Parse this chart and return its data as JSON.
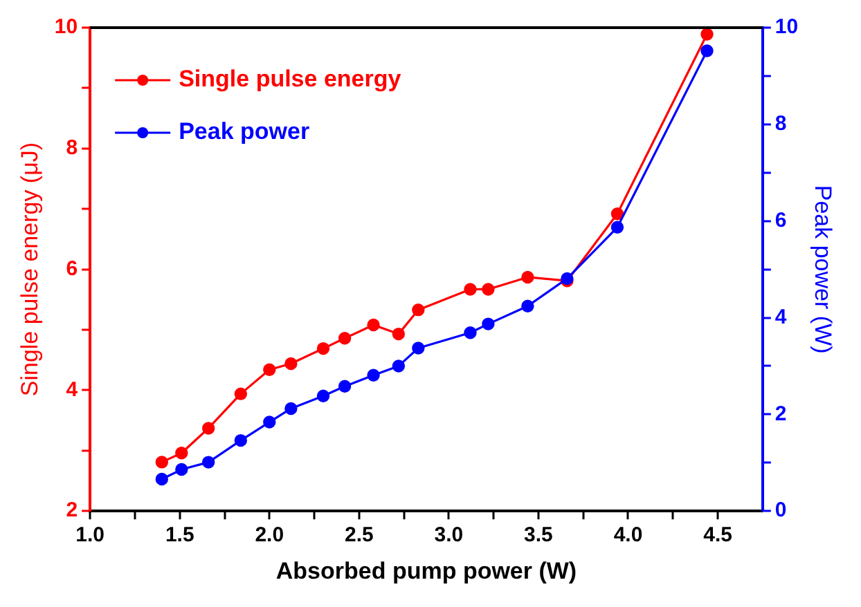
{
  "chart_data": {
    "type": "line",
    "xlabel": "Absorbed pump power (W)",
    "ylabel": "Single pulse energy (μJ)",
    "y2label": "Peak power (W)",
    "x": [
      1.4,
      1.51,
      1.66,
      1.84,
      2.0,
      2.12,
      2.3,
      2.42,
      2.58,
      2.72,
      2.83,
      3.12,
      3.22,
      3.44,
      3.66,
      3.94,
      4.44
    ],
    "series": [
      {
        "name": "Single pulse energy",
        "color": "#ff0000",
        "values": [
          2.81,
          2.96,
          3.37,
          3.94,
          4.34,
          4.44,
          4.69,
          4.86,
          5.08,
          4.93,
          5.33,
          5.67,
          5.67,
          5.87,
          5.81,
          6.92,
          9.89
        ]
      },
      {
        "name": "Peak power",
        "color": "#0000ff",
        "axis": "y2",
        "values": [
          0.66,
          0.86,
          1.01,
          1.46,
          1.84,
          2.12,
          2.38,
          2.58,
          2.81,
          3.0,
          3.37,
          3.69,
          3.87,
          4.24,
          4.81,
          5.87,
          9.52
        ]
      }
    ],
    "xlim": [
      1.0,
      4.75
    ],
    "xticks": [
      {
        "value": 1,
        "label": "1.0"
      },
      {
        "value": 1.25,
        "label": null
      },
      1.5,
      {
        "value": 1.75,
        "label": null
      },
      {
        "value": 2,
        "label": "2.0"
      },
      {
        "value": 2.25,
        "label": null
      },
      2.5,
      {
        "value": 2.75,
        "label": null
      },
      {
        "value": 3,
        "label": "3.0"
      },
      {
        "value": 3.25,
        "label": null
      },
      3.5,
      {
        "value": 3.75,
        "label": null
      },
      {
        "value": 4,
        "label": "4.0"
      },
      {
        "value": 4.25,
        "label": null
      },
      4.5
    ],
    "ylim": [
      2,
      10
    ],
    "yticks": [
      2,
      {
        "value": 3,
        "label": null
      },
      4,
      {
        "value": 5,
        "label": null
      },
      6,
      {
        "value": 7,
        "label": null
      },
      8,
      {
        "value": 9,
        "label": null
      },
      10
    ],
    "y2lim": [
      0,
      10
    ],
    "y2ticks": [
      0,
      {
        "value": 1,
        "label": null
      },
      2,
      {
        "value": 3,
        "label": null
      },
      4,
      {
        "value": 5,
        "label": null
      },
      6,
      {
        "value": 7,
        "label": null
      },
      8,
      {
        "value": 9,
        "label": null
      },
      10
    ],
    "grid": false,
    "legend": "top left",
    "marker": "circle",
    "line_style": "solid"
  }
}
